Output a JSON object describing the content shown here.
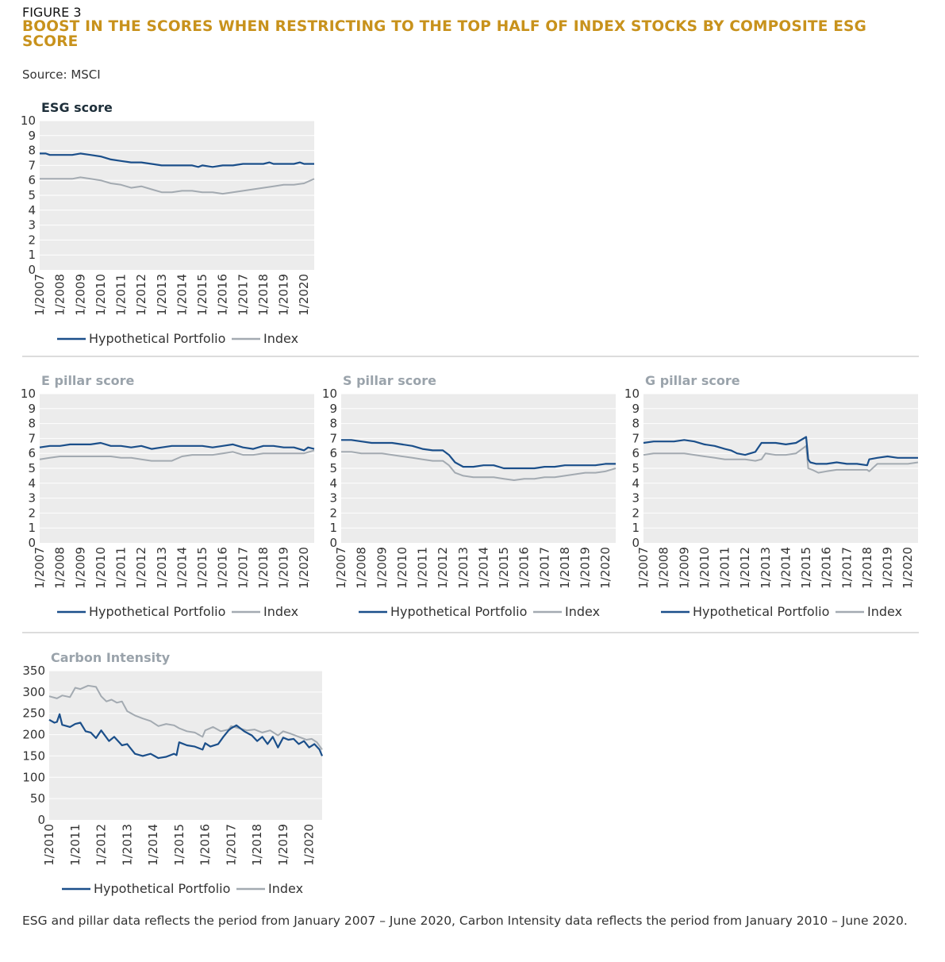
{
  "figure": {
    "label": "FIGURE 3",
    "title": "BOOST IN THE SCORES WHEN RESTRICTING TO THE TOP HALF OF INDEX STOCKS BY COMPOSITE ESG SCORE",
    "source": "Source: MSCI"
  },
  "colors": {
    "portfolio": "#1b4f8a",
    "index": "#a3aab1",
    "plot_bg": "#ececec",
    "grid": "#ffffff",
    "title_dark": "#1e2f3a",
    "title_gray": "#9aa3ab"
  },
  "legend": {
    "portfolio": "Hypothetical Portfolio",
    "index": "Index"
  },
  "footnote": "ESG and pillar data reflects the period from January 2007 – June 2020, Carbon Intensity data reflects the period from January 2010 – June 2020.",
  "chart_data": [
    {
      "type": "line",
      "title": "ESG score",
      "ylim": [
        0,
        10
      ],
      "yticks": [
        "0",
        "1",
        "2",
        "3",
        "4",
        "5",
        "6",
        "7",
        "8",
        "9",
        "10"
      ],
      "xlim": [
        2007.0,
        2020.5
      ],
      "xticks": [
        "1/2007",
        "1/2008",
        "1/2009",
        "1/2010",
        "1/2011",
        "1/2012",
        "1/2013",
        "1/2014",
        "1/2015",
        "1/2016",
        "1/2017",
        "1/2018",
        "1/2019",
        "1/2020"
      ],
      "series": [
        {
          "name": "Hypothetical Portfolio",
          "x": [
            2007.0,
            2007.3,
            2007.5,
            2008.0,
            2008.6,
            2009.0,
            2009.5,
            2010.0,
            2010.5,
            2011.0,
            2011.5,
            2012.0,
            2012.5,
            2013.0,
            2013.5,
            2014.0,
            2014.5,
            2014.8,
            2015.0,
            2015.5,
            2016.0,
            2016.5,
            2017.0,
            2017.5,
            2018.0,
            2018.3,
            2018.5,
            2019.0,
            2019.5,
            2019.8,
            2020.0,
            2020.5
          ],
          "y": [
            7.8,
            7.8,
            7.7,
            7.7,
            7.7,
            7.8,
            7.7,
            7.6,
            7.4,
            7.3,
            7.2,
            7.2,
            7.1,
            7.0,
            7.0,
            7.0,
            7.0,
            6.9,
            7.0,
            6.9,
            7.0,
            7.0,
            7.1,
            7.1,
            7.1,
            7.2,
            7.1,
            7.1,
            7.1,
            7.2,
            7.1,
            7.1
          ]
        },
        {
          "name": "Index",
          "x": [
            2007.0,
            2007.5,
            2008.0,
            2008.6,
            2009.0,
            2009.5,
            2010.0,
            2010.5,
            2011.0,
            2011.5,
            2012.0,
            2012.5,
            2013.0,
            2013.5,
            2014.0,
            2014.5,
            2015.0,
            2015.5,
            2016.0,
            2016.5,
            2017.0,
            2017.5,
            2018.0,
            2018.5,
            2019.0,
            2019.5,
            2020.0,
            2020.5
          ],
          "y": [
            6.1,
            6.1,
            6.1,
            6.1,
            6.2,
            6.1,
            6.0,
            5.8,
            5.7,
            5.5,
            5.6,
            5.4,
            5.2,
            5.2,
            5.3,
            5.3,
            5.2,
            5.2,
            5.1,
            5.2,
            5.3,
            5.4,
            5.5,
            5.6,
            5.7,
            5.7,
            5.8,
            6.1
          ]
        }
      ]
    },
    {
      "type": "line",
      "title": "E pillar score",
      "ylim": [
        0,
        10
      ],
      "yticks": [
        "0",
        "1",
        "2",
        "3",
        "4",
        "5",
        "6",
        "7",
        "8",
        "9",
        "10"
      ],
      "xlim": [
        2007.0,
        2020.5
      ],
      "xticks": [
        "1/2007",
        "1/2008",
        "1/2009",
        "1/2010",
        "1/2011",
        "1/2012",
        "1/2013",
        "1/2014",
        "1/2015",
        "1/2016",
        "1/2017",
        "1/2018",
        "1/2019",
        "1/2020"
      ],
      "series": [
        {
          "name": "Hypothetical Portfolio",
          "x": [
            2007.0,
            2007.5,
            2008.0,
            2008.5,
            2009.0,
            2009.5,
            2010.0,
            2010.5,
            2011.0,
            2011.5,
            2012.0,
            2012.5,
            2013.0,
            2013.5,
            2014.0,
            2014.5,
            2015.0,
            2015.5,
            2016.0,
            2016.5,
            2017.0,
            2017.5,
            2018.0,
            2018.5,
            2019.0,
            2019.5,
            2020.0,
            2020.2,
            2020.5
          ],
          "y": [
            6.4,
            6.5,
            6.5,
            6.6,
            6.6,
            6.6,
            6.7,
            6.5,
            6.5,
            6.4,
            6.5,
            6.3,
            6.4,
            6.5,
            6.5,
            6.5,
            6.5,
            6.4,
            6.5,
            6.6,
            6.4,
            6.3,
            6.5,
            6.5,
            6.4,
            6.4,
            6.2,
            6.4,
            6.3
          ]
        },
        {
          "name": "Index",
          "x": [
            2007.0,
            2007.5,
            2008.0,
            2008.5,
            2009.0,
            2009.5,
            2010.0,
            2010.5,
            2011.0,
            2011.5,
            2012.0,
            2012.5,
            2013.0,
            2013.5,
            2014.0,
            2014.5,
            2015.0,
            2015.5,
            2016.0,
            2016.5,
            2017.0,
            2017.5,
            2018.0,
            2018.5,
            2019.0,
            2019.5,
            2020.0,
            2020.5
          ],
          "y": [
            5.6,
            5.7,
            5.8,
            5.8,
            5.8,
            5.8,
            5.8,
            5.8,
            5.7,
            5.7,
            5.6,
            5.5,
            5.5,
            5.5,
            5.8,
            5.9,
            5.9,
            5.9,
            6.0,
            6.1,
            5.9,
            5.9,
            6.0,
            6.0,
            6.0,
            6.0,
            6.0,
            6.2
          ]
        }
      ]
    },
    {
      "type": "line",
      "title": "S pillar score",
      "ylim": [
        0,
        10
      ],
      "yticks": [
        "0",
        "1",
        "2",
        "3",
        "4",
        "5",
        "6",
        "7",
        "8",
        "9",
        "10"
      ],
      "xlim": [
        2007.0,
        2020.5
      ],
      "xticks": [
        "1/2007",
        "1/2008",
        "1/2009",
        "1/2010",
        "1/2011",
        "1/2012",
        "1/2013",
        "1/2014",
        "1/2015",
        "1/2016",
        "1/2017",
        "1/2018",
        "1/2019",
        "1/2020"
      ],
      "series": [
        {
          "name": "Hypothetical Portfolio",
          "x": [
            2007.0,
            2007.5,
            2008.0,
            2008.5,
            2009.0,
            2009.5,
            2010.0,
            2010.5,
            2011.0,
            2011.5,
            2012.0,
            2012.3,
            2012.6,
            2013.0,
            2013.5,
            2014.0,
            2014.5,
            2015.0,
            2015.5,
            2016.0,
            2016.5,
            2017.0,
            2017.5,
            2018.0,
            2018.5,
            2019.0,
            2019.5,
            2020.0,
            2020.5
          ],
          "y": [
            6.9,
            6.9,
            6.8,
            6.7,
            6.7,
            6.7,
            6.6,
            6.5,
            6.3,
            6.2,
            6.2,
            5.9,
            5.4,
            5.1,
            5.1,
            5.2,
            5.2,
            5.0,
            5.0,
            5.0,
            5.0,
            5.1,
            5.1,
            5.2,
            5.2,
            5.2,
            5.2,
            5.3,
            5.3
          ]
        },
        {
          "name": "Index",
          "x": [
            2007.0,
            2007.5,
            2008.0,
            2008.5,
            2009.0,
            2009.5,
            2010.0,
            2010.5,
            2011.0,
            2011.5,
            2012.0,
            2012.3,
            2012.6,
            2013.0,
            2013.5,
            2014.0,
            2014.5,
            2015.0,
            2015.5,
            2016.0,
            2016.5,
            2017.0,
            2017.5,
            2018.0,
            2018.5,
            2019.0,
            2019.5,
            2020.0,
            2020.5
          ],
          "y": [
            6.1,
            6.1,
            6.0,
            6.0,
            6.0,
            5.9,
            5.8,
            5.7,
            5.6,
            5.5,
            5.5,
            5.2,
            4.7,
            4.5,
            4.4,
            4.4,
            4.4,
            4.3,
            4.2,
            4.3,
            4.3,
            4.4,
            4.4,
            4.5,
            4.6,
            4.7,
            4.7,
            4.8,
            5.0
          ]
        }
      ]
    },
    {
      "type": "line",
      "title": "G pillar score",
      "ylim": [
        0,
        10
      ],
      "yticks": [
        "0",
        "1",
        "2",
        "3",
        "4",
        "5",
        "6",
        "7",
        "8",
        "9",
        "10"
      ],
      "xlim": [
        2007.0,
        2020.5
      ],
      "xticks": [
        "1/2007",
        "1/2008",
        "1/2009",
        "1/2010",
        "1/2011",
        "1/2012",
        "1/2013",
        "1/2014",
        "1/2015",
        "1/2016",
        "1/2017",
        "1/2018",
        "1/2019",
        "1/2020"
      ],
      "series": [
        {
          "name": "Hypothetical Portfolio",
          "x": [
            2007.0,
            2007.5,
            2008.0,
            2008.5,
            2009.0,
            2009.5,
            2010.0,
            2010.5,
            2011.0,
            2011.3,
            2011.6,
            2012.0,
            2012.5,
            2012.8,
            2013.0,
            2013.5,
            2014.0,
            2014.5,
            2015.0,
            2015.1,
            2015.2,
            2015.5,
            2016.0,
            2016.5,
            2017.0,
            2017.5,
            2018.0,
            2018.1,
            2018.5,
            2019.0,
            2019.5,
            2020.0,
            2020.5
          ],
          "y": [
            6.7,
            6.8,
            6.8,
            6.8,
            6.9,
            6.8,
            6.6,
            6.5,
            6.3,
            6.2,
            6.0,
            5.9,
            6.1,
            6.7,
            6.7,
            6.7,
            6.6,
            6.7,
            7.1,
            5.6,
            5.4,
            5.3,
            5.3,
            5.4,
            5.3,
            5.3,
            5.2,
            5.6,
            5.7,
            5.8,
            5.7,
            5.7,
            5.7
          ]
        },
        {
          "name": "Index",
          "x": [
            2007.0,
            2007.5,
            2008.0,
            2008.5,
            2009.0,
            2009.5,
            2010.0,
            2010.5,
            2011.0,
            2011.5,
            2012.0,
            2012.5,
            2012.8,
            2013.0,
            2013.5,
            2014.0,
            2014.5,
            2015.0,
            2015.1,
            2015.3,
            2015.6,
            2016.0,
            2016.5,
            2017.0,
            2017.5,
            2018.0,
            2018.1,
            2018.5,
            2019.0,
            2019.5,
            2020.0,
            2020.5
          ],
          "y": [
            5.9,
            6.0,
            6.0,
            6.0,
            6.0,
            5.9,
            5.8,
            5.7,
            5.6,
            5.6,
            5.6,
            5.5,
            5.6,
            6.0,
            5.9,
            5.9,
            6.0,
            6.5,
            5.0,
            4.9,
            4.7,
            4.8,
            4.9,
            4.9,
            4.9,
            4.9,
            4.8,
            5.3,
            5.3,
            5.3,
            5.3,
            5.4
          ]
        }
      ]
    },
    {
      "type": "line",
      "title": "Carbon Intensity",
      "ylim": [
        0,
        350
      ],
      "yticks": [
        "0",
        "50",
        "100",
        "150",
        "200",
        "250",
        "300",
        "350"
      ],
      "xlim": [
        2010.0,
        2020.5
      ],
      "xticks": [
        "1/2010",
        "1/2011",
        "1/2012",
        "1/2013",
        "1/2014",
        "1/2015",
        "1/2016",
        "1/2017",
        "1/2018",
        "1/2019",
        "1/2020"
      ],
      "series": [
        {
          "name": "Hypothetical Portfolio",
          "x": [
            2010.0,
            2010.2,
            2010.3,
            2010.4,
            2010.5,
            2010.8,
            2011.0,
            2011.2,
            2011.4,
            2011.6,
            2011.8,
            2012.0,
            2012.3,
            2012.5,
            2012.8,
            2013.0,
            2013.3,
            2013.6,
            2013.9,
            2014.2,
            2014.5,
            2014.8,
            2014.9,
            2015.0,
            2015.3,
            2015.6,
            2015.9,
            2016.0,
            2016.2,
            2016.5,
            2016.7,
            2016.9,
            2017.0,
            2017.2,
            2017.5,
            2017.8,
            2018.0,
            2018.2,
            2018.4,
            2018.6,
            2018.8,
            2019.0,
            2019.2,
            2019.4,
            2019.6,
            2019.8,
            2020.0,
            2020.2,
            2020.4,
            2020.5
          ],
          "y": [
            235,
            228,
            230,
            248,
            223,
            218,
            225,
            228,
            208,
            205,
            192,
            210,
            185,
            195,
            175,
            178,
            155,
            150,
            155,
            145,
            148,
            155,
            152,
            182,
            175,
            172,
            165,
            180,
            172,
            178,
            195,
            210,
            215,
            222,
            208,
            198,
            185,
            195,
            178,
            195,
            170,
            193,
            188,
            190,
            178,
            185,
            170,
            178,
            165,
            150
          ]
        },
        {
          "name": "Index",
          "x": [
            2010.0,
            2010.3,
            2010.5,
            2010.8,
            2011.0,
            2011.2,
            2011.5,
            2011.8,
            2012.0,
            2012.2,
            2012.4,
            2012.6,
            2012.8,
            2013.0,
            2013.3,
            2013.6,
            2013.9,
            2014.2,
            2014.5,
            2014.8,
            2015.0,
            2015.3,
            2015.6,
            2015.9,
            2016.0,
            2016.3,
            2016.6,
            2016.9,
            2017.0,
            2017.3,
            2017.6,
            2017.9,
            2018.2,
            2018.5,
            2018.8,
            2019.0,
            2019.3,
            2019.6,
            2019.9,
            2020.1,
            2020.3,
            2020.5
          ],
          "y": [
            290,
            285,
            292,
            288,
            310,
            307,
            315,
            312,
            290,
            278,
            282,
            275,
            278,
            255,
            245,
            238,
            232,
            220,
            225,
            222,
            215,
            208,
            205,
            195,
            210,
            218,
            208,
            212,
            220,
            215,
            210,
            212,
            205,
            210,
            198,
            208,
            202,
            195,
            188,
            190,
            182,
            165
          ]
        }
      ]
    }
  ]
}
